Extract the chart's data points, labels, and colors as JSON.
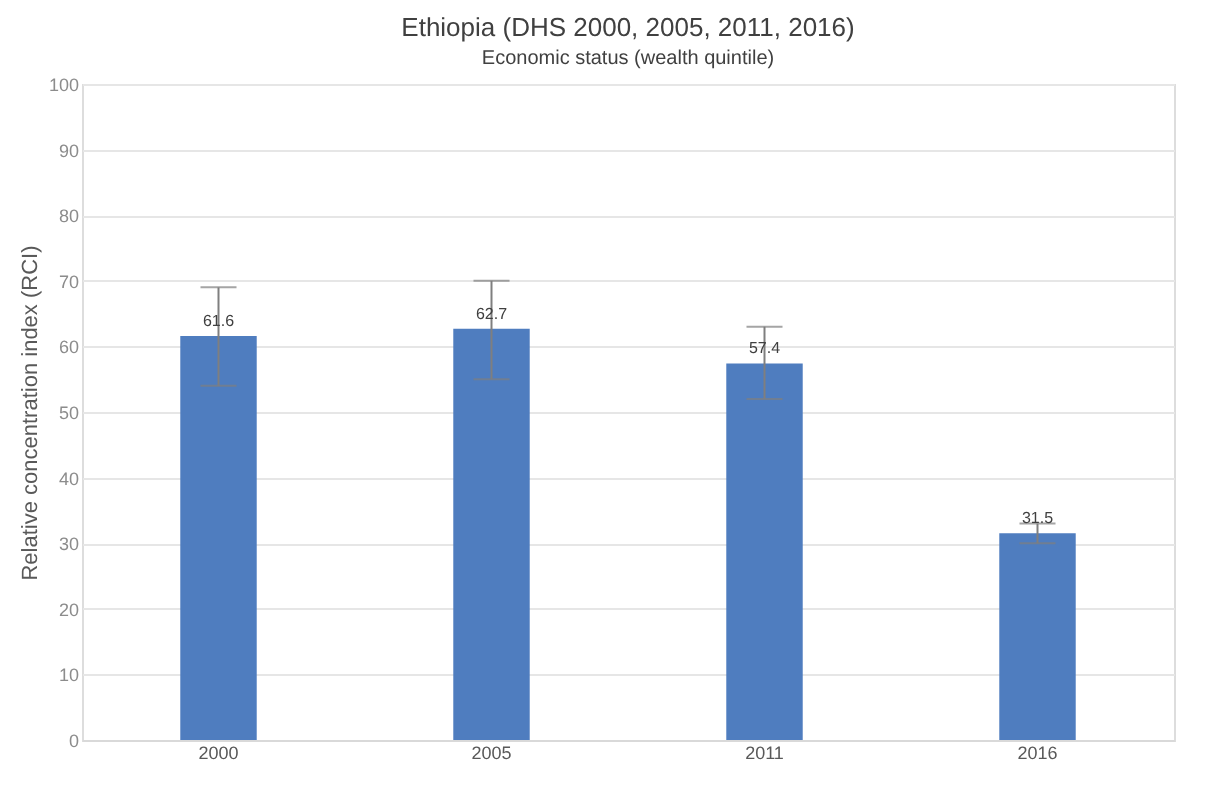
{
  "chart_data": {
    "type": "bar",
    "title": "Ethiopia (DHS 2000, 2005, 2011, 2016)",
    "subtitle": "Economic status (wealth quintile)",
    "ylabel": "Relative concentration index (RCI)",
    "categories": [
      "2000",
      "2005",
      "2011",
      "2016"
    ],
    "values": [
      61.6,
      62.7,
      57.4,
      31.5
    ],
    "errors": [
      [
        54,
        69
      ],
      [
        55,
        70
      ],
      [
        52,
        63
      ],
      [
        30,
        33
      ]
    ],
    "color": "#4f7dbf",
    "ylim": [
      0,
      100
    ],
    "yticks": [
      0,
      10,
      20,
      30,
      40,
      50,
      60,
      70,
      80,
      90,
      100
    ],
    "grid": "y",
    "data_labels": true
  }
}
